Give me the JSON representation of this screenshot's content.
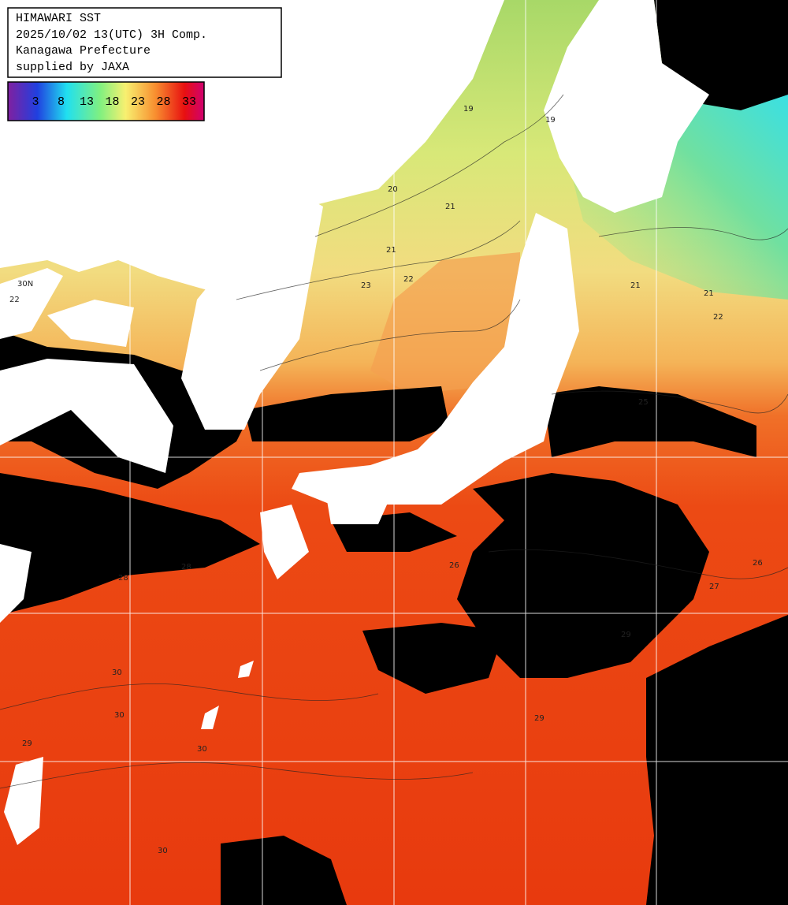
{
  "header": {
    "lines": [
      "HIMAWARI SST",
      "2025/10/02 13(UTC) 3H Comp.",
      "Kanagawa Prefecture",
      "supplied by JAXA"
    ]
  },
  "legend": {
    "ticks": [
      "3",
      "8",
      "13",
      "18",
      "23",
      "28",
      "33"
    ]
  },
  "map": {
    "latitude_label": "30N",
    "contour_labels": [
      "19",
      "19",
      "20",
      "21",
      "21",
      "22",
      "23",
      "22",
      "21",
      "21",
      "22",
      "25",
      "26",
      "27",
      "26",
      "28",
      "28",
      "29",
      "30",
      "30",
      "30",
      "29",
      "29",
      "30"
    ]
  }
}
